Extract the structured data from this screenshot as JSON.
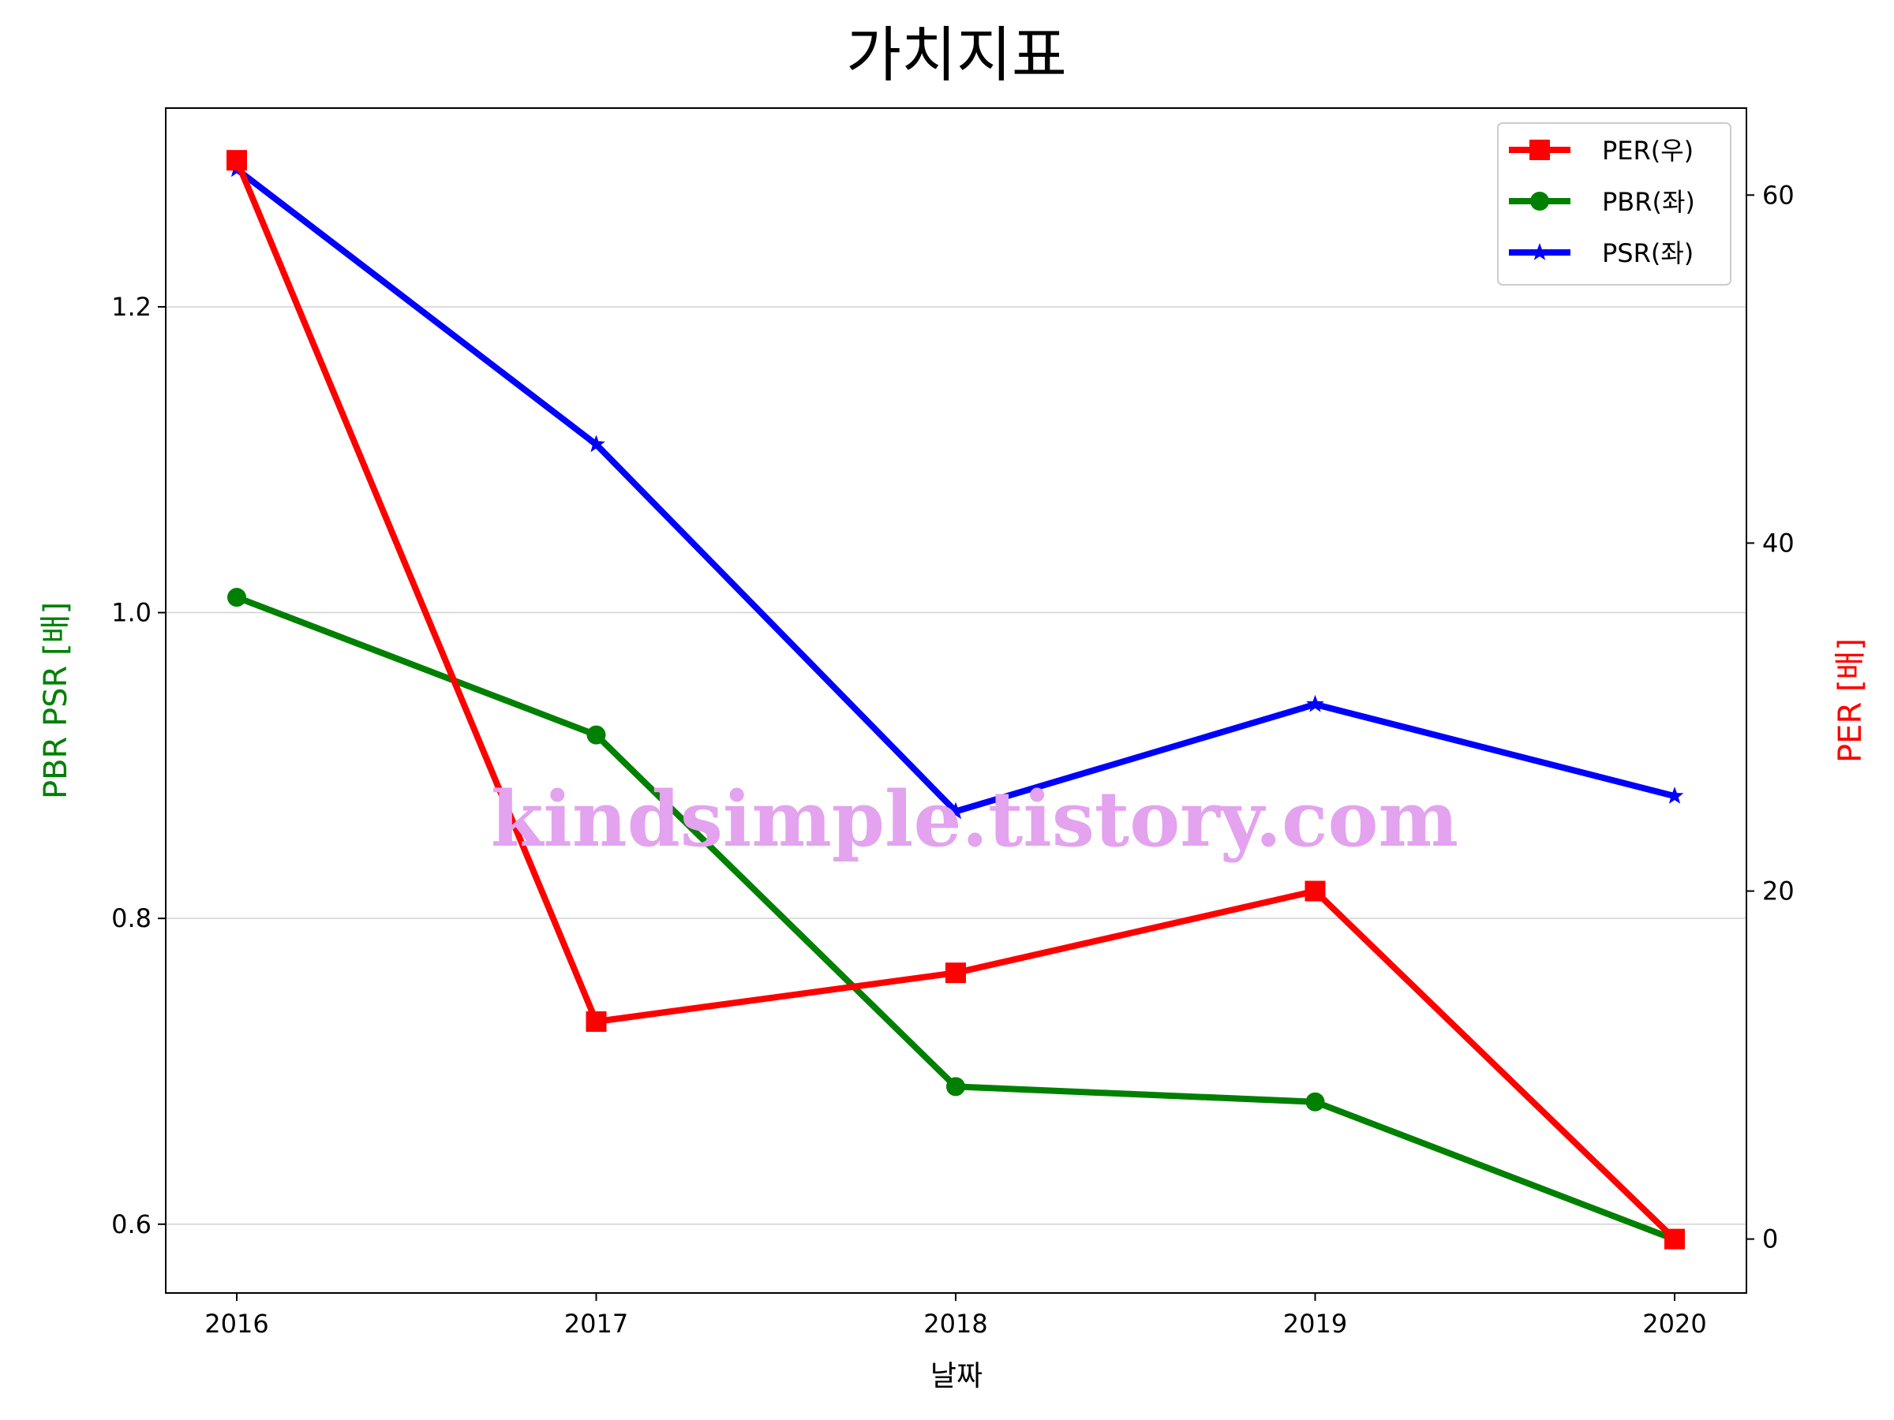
{
  "chart_data": {
    "type": "line",
    "title": "가치지표",
    "xlabel": "날짜",
    "ylabel_left": "PBR PSR [배]",
    "ylabel_right": "PER [배]",
    "categories": [
      "2016",
      "2017",
      "2018",
      "2019",
      "2020"
    ],
    "left_axis": {
      "ylim": [
        0.555,
        1.33
      ],
      "ticks": [
        0.6,
        0.8,
        1.0,
        1.2
      ],
      "tick_labels": [
        "0.6",
        "0.8",
        "1.0",
        "1.2"
      ]
    },
    "right_axis": {
      "ylim": [
        -3.1,
        65.0
      ],
      "ticks": [
        0,
        20,
        40,
        60
      ],
      "tick_labels": [
        "0",
        "20",
        "40",
        "60"
      ]
    },
    "grid": "horizontal",
    "legend_position": "top-right",
    "series": [
      {
        "name": "PER(우)",
        "axis": "right",
        "color": "#ff0000",
        "marker": "square",
        "values": [
          62.0,
          12.5,
          15.3,
          20.0,
          0.0
        ]
      },
      {
        "name": "PBR(좌)",
        "axis": "left",
        "color": "#008000",
        "marker": "circle",
        "values": [
          1.01,
          0.92,
          0.69,
          0.68,
          0.59
        ]
      },
      {
        "name": "PSR(좌)",
        "axis": "left",
        "color": "#0000ff",
        "marker": "star",
        "values": [
          1.29,
          1.11,
          0.87,
          0.94,
          0.88
        ]
      }
    ],
    "ylabel_left_color": "#008000",
    "ylabel_right_color": "#ff0000",
    "watermark": "kindsimple.tistory.com",
    "watermark_color": "#e3a3ee"
  }
}
